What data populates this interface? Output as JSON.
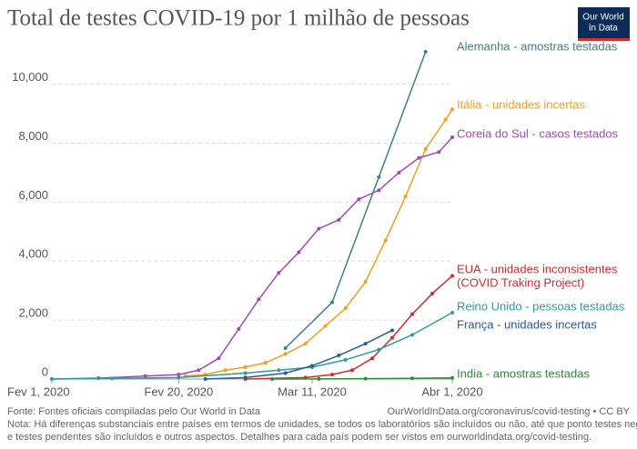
{
  "chart_data": {
    "type": "line",
    "title": "Total de testes COVID-19 por 1 milhão de pessoas",
    "logo": [
      "Our World",
      "in Data"
    ],
    "source": "Fonte: Fontes oficiais compiladas pelo Our World in Data",
    "url": "OurWorldInData.org/coronavirus/covid-testing • CC BY",
    "note": [
      "Nota: Há diferenças substanciais entre países em termos de unidades, se todos os laboratórios são incluídos ou não, até que ponto testes negativos",
      "e testes pendentes são incluídos e outros aspectos. Detalhes para cada país podem ser vistos em ourworldindata.org/covid-testing."
    ],
    "xlim": [
      "2020-02-01",
      "2020-04-01"
    ],
    "xticks": [
      {
        "value": "2020-02-01",
        "label": "Fev 1, 2020"
      },
      {
        "value": "2020-02-20",
        "label": "Fev 20, 2020"
      },
      {
        "value": "2020-03-11",
        "label": "Mar 11, 2020"
      },
      {
        "value": "2020-04-01",
        "label": "Abr 1, 2020"
      }
    ],
    "ylim": [
      0,
      11500
    ],
    "yticks": [
      0,
      {
        "value": 2000,
        "label": "2,000"
      },
      {
        "value": 4000,
        "label": "4,000"
      },
      {
        "value": 6000,
        "label": "6,000"
      },
      {
        "value": 8000,
        "label": "8,000"
      },
      {
        "value": 10000,
        "label": "10,000"
      }
    ],
    "grid": true,
    "series": [
      {
        "name": "Alemanha - amostras testadas",
        "color": "#3f7f8c",
        "x": [
          "2020-03-07",
          "2020-03-14",
          "2020-03-21",
          "2020-03-28"
        ],
        "values": [
          1050,
          2600,
          6850,
          11100
        ]
      },
      {
        "name": "Itália - unidades incertas",
        "color": "#f0a020",
        "x": [
          "2020-02-21",
          "2020-02-24",
          "2020-02-27",
          "2020-03-01",
          "2020-03-04",
          "2020-03-07",
          "2020-03-10",
          "2020-03-13",
          "2020-03-16",
          "2020-03-19",
          "2020-03-22",
          "2020-03-25",
          "2020-03-28",
          "2020-03-31",
          "2020-04-01"
        ],
        "values": [
          100,
          150,
          300,
          400,
          550,
          850,
          1200,
          1800,
          2400,
          3300,
          4700,
          6200,
          7800,
          8800,
          9150
        ]
      },
      {
        "name": "Coreia do Sul - casos testados",
        "color": "#a04ab5",
        "x": [
          "2020-02-01",
          "2020-02-08",
          "2020-02-15",
          "2020-02-20",
          "2020-02-23",
          "2020-02-26",
          "2020-02-29",
          "2020-03-03",
          "2020-03-06",
          "2020-03-09",
          "2020-03-12",
          "2020-03-15",
          "2020-03-18",
          "2020-03-21",
          "2020-03-24",
          "2020-03-27",
          "2020-03-30",
          "2020-04-01"
        ],
        "values": [
          0,
          30,
          100,
          150,
          300,
          700,
          1700,
          2700,
          3600,
          4300,
          5100,
          5400,
          6100,
          6400,
          7000,
          7500,
          7700,
          8200
        ]
      },
      {
        "name": "EUA - unidades inconsistentes",
        "name_note": "(COVID Traking Project)",
        "color": "#d42a2a",
        "x": [
          "2020-03-01",
          "2020-03-10",
          "2020-03-14",
          "2020-03-17",
          "2020-03-20",
          "2020-03-23",
          "2020-03-26",
          "2020-03-29",
          "2020-04-01"
        ],
        "values": [
          0,
          50,
          150,
          300,
          700,
          1400,
          2200,
          2900,
          3500
        ]
      },
      {
        "name": "Reino Unido - pessoas testadas",
        "color": "#2e9c9c",
        "x": [
          "2020-02-01",
          "2020-02-10",
          "2020-02-20",
          "2020-03-01",
          "2020-03-06",
          "2020-03-11",
          "2020-03-16",
          "2020-03-21",
          "2020-03-26",
          "2020-04-01"
        ],
        "values": [
          0,
          20,
          50,
          200,
          300,
          400,
          650,
          1000,
          1500,
          2250
        ]
      },
      {
        "name": "França - unidades incertas",
        "color": "#2a5a9a",
        "x": [
          "2020-02-24",
          "2020-03-01",
          "2020-03-07",
          "2020-03-11",
          "2020-03-15",
          "2020-03-19",
          "2020-03-23"
        ],
        "values": [
          0,
          50,
          200,
          450,
          800,
          1200,
          1650
        ]
      },
      {
        "name": "India - amostras testadas",
        "color": "#2e8b3a",
        "x": [
          "2020-03-05",
          "2020-03-12",
          "2020-03-19",
          "2020-03-26",
          "2020-04-01"
        ],
        "values": [
          0,
          5,
          10,
          25,
          40
        ]
      }
    ]
  }
}
